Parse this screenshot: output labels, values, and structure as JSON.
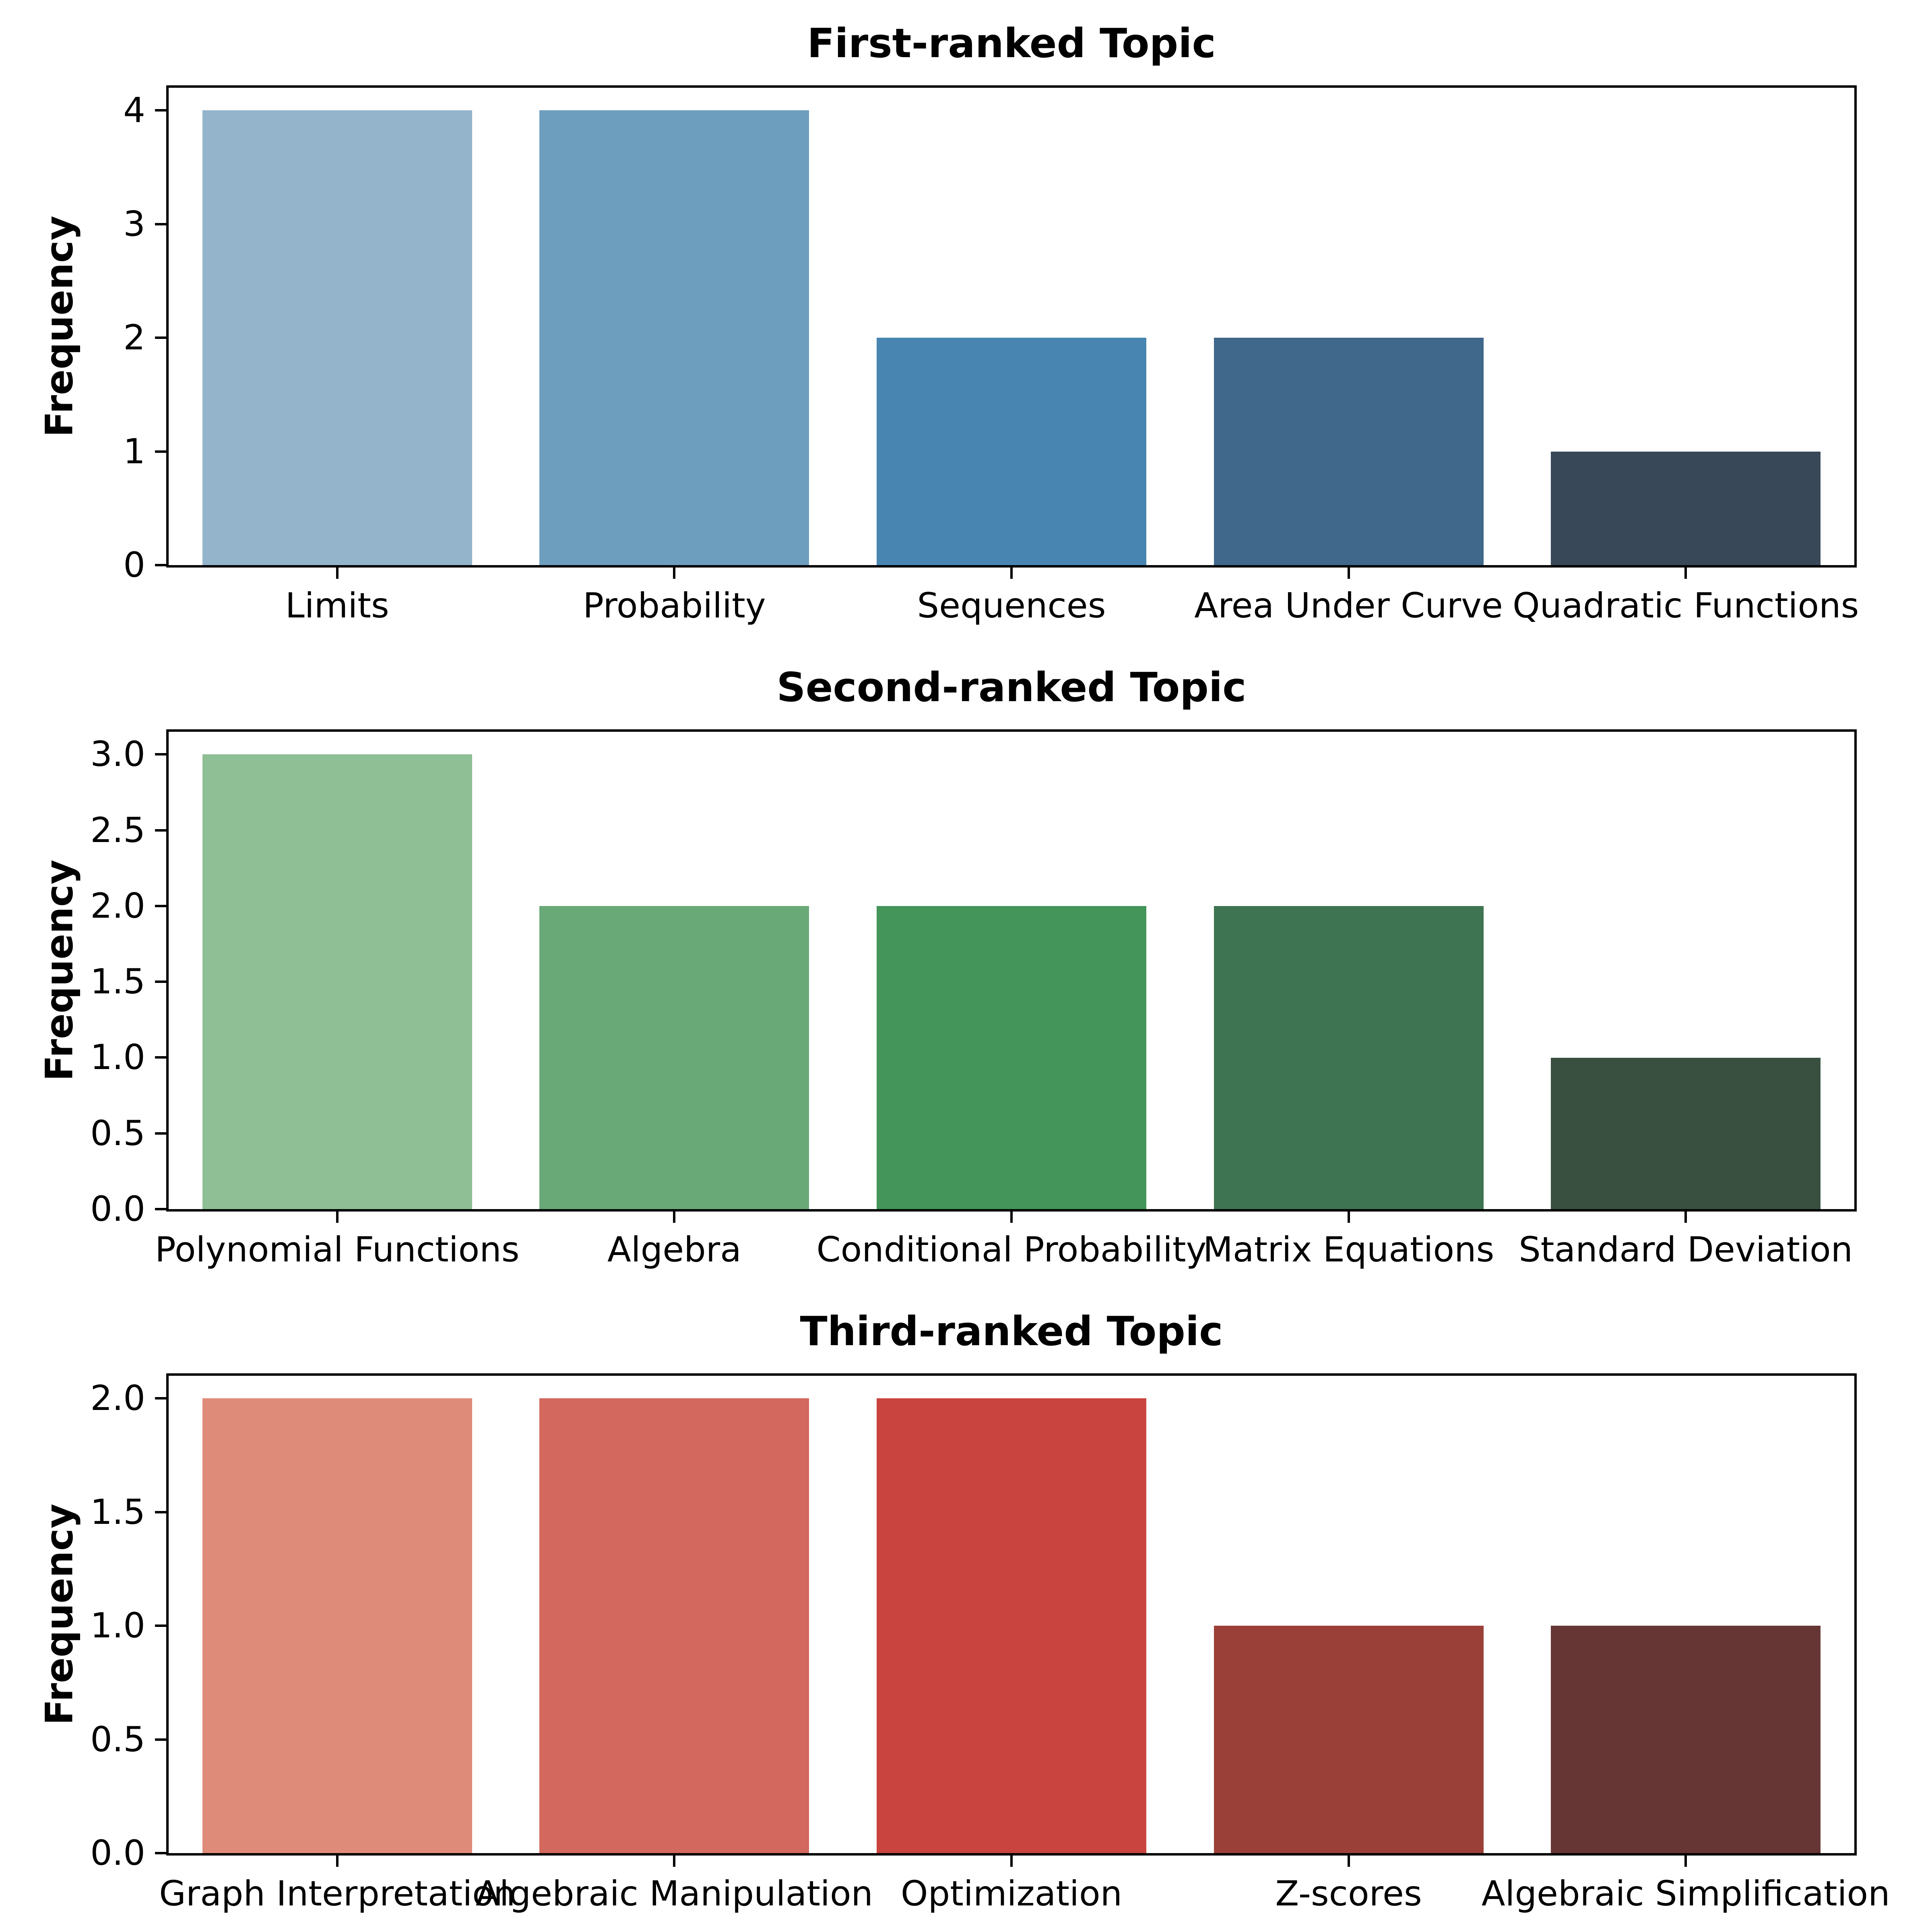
{
  "figure": {
    "background": "#ffffff",
    "spine_color": "#000000",
    "text_color": "#000000"
  },
  "chart_data": [
    {
      "type": "bar",
      "title": "First-ranked Topic",
      "ylabel": "Frequency",
      "categories": [
        "Limits",
        "Probability",
        "Sequences",
        "Area Under Curve",
        "Quadratic Functions"
      ],
      "values": [
        4,
        4,
        2,
        2,
        1
      ],
      "bar_colors": [
        "#94b4cc",
        "#6e9ebe",
        "#4886b1",
        "#3f688b",
        "#384859"
      ],
      "ylim": [
        0,
        4.2
      ],
      "ytick_values": [
        0,
        1,
        2,
        3,
        4
      ],
      "ytick_labels": [
        "0",
        "1",
        "2",
        "3",
        "4"
      ],
      "bar_width_fraction": 0.8,
      "grid": false,
      "legend_position": "none"
    },
    {
      "type": "bar",
      "title": "Second-ranked Topic",
      "ylabel": "Frequency",
      "categories": [
        "Polynomial Functions",
        "Algebra",
        "Conditional Probability",
        "Matrix Equations",
        "Standard Deviation"
      ],
      "values": [
        3,
        2,
        2,
        2,
        1
      ],
      "bar_colors": [
        "#8fbf94",
        "#69a978",
        "#43955a",
        "#3e7451",
        "#395040"
      ],
      "ylim": [
        0,
        3.15
      ],
      "ytick_values": [
        0,
        0.5,
        1,
        1.5,
        2,
        2.5,
        3
      ],
      "ytick_labels": [
        "0.0",
        "0.5",
        "1.0",
        "1.5",
        "2.0",
        "2.5",
        "3.0"
      ],
      "bar_width_fraction": 0.8,
      "grid": false,
      "legend_position": "none"
    },
    {
      "type": "bar",
      "title": "Third-ranked Topic",
      "ylabel": "Frequency",
      "categories": [
        "Graph Interpretation",
        "Algebraic Manipulation",
        "Optimization",
        "Z-scores",
        "Algebraic Simplification"
      ],
      "values": [
        2,
        2,
        2,
        1,
        1
      ],
      "bar_colors": [
        "#df8b79",
        "#d2685e",
        "#c9443f",
        "#9b4038",
        "#663634"
      ],
      "ylim": [
        0,
        2.1
      ],
      "ytick_values": [
        0,
        0.5,
        1,
        1.5,
        2
      ],
      "ytick_labels": [
        "0.0",
        "0.5",
        "1.0",
        "1.5",
        "2.0"
      ],
      "bar_width_fraction": 0.8,
      "grid": false,
      "legend_position": "none"
    }
  ]
}
